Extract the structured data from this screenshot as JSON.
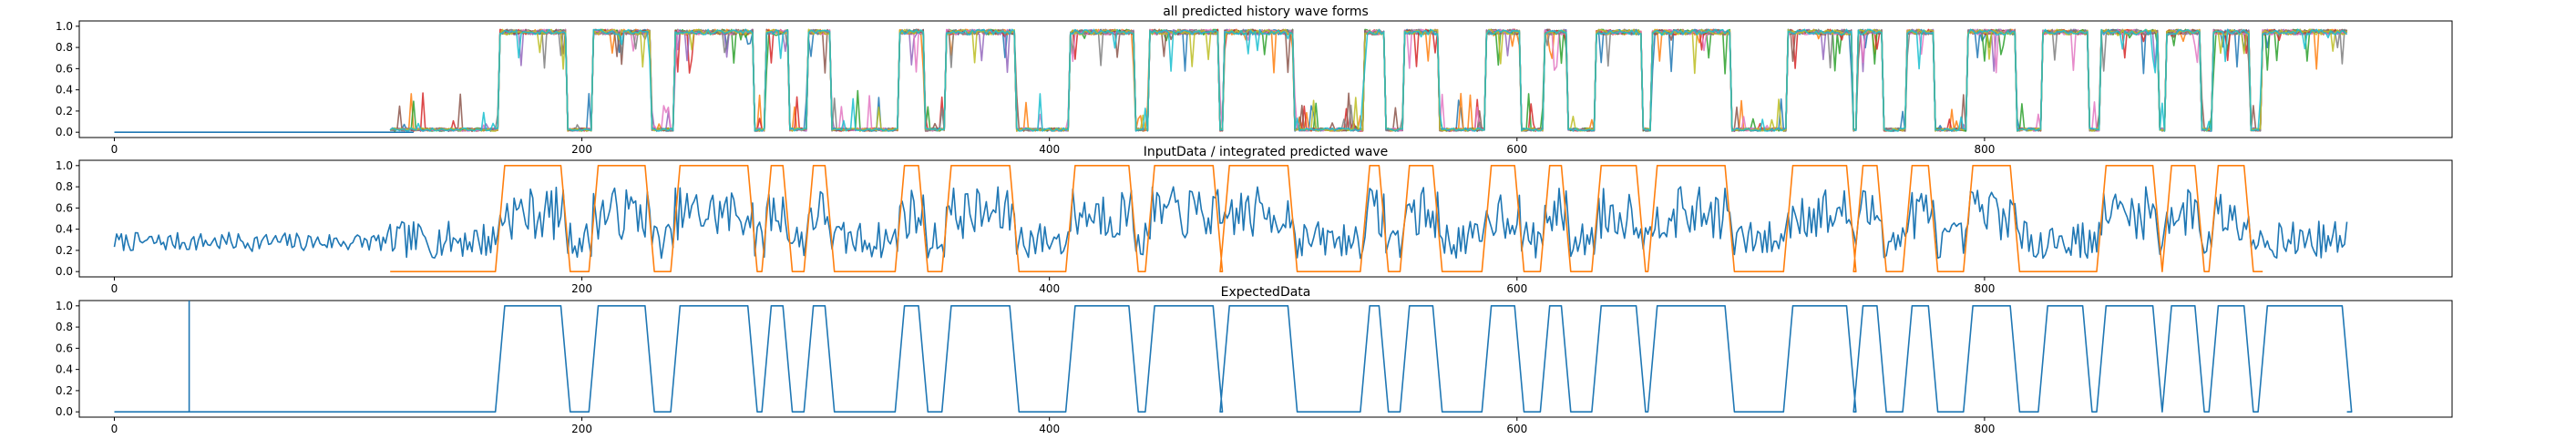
{
  "chart_data": [
    {
      "type": "line",
      "title": "all predicted history wave forms",
      "xlim": [
        -15,
        1000
      ],
      "ylim": [
        -0.05,
        1.05
      ],
      "xticks": [
        0,
        200,
        400,
        600,
        800
      ],
      "yticks": [
        0.0,
        0.2,
        0.4,
        0.6,
        0.8,
        1.0
      ],
      "series_colors": [
        "#1f77b4",
        "#ff7f0e",
        "#2ca02c",
        "#d62728",
        "#9467bd",
        "#8c564b",
        "#e377c2",
        "#7f7f7f",
        "#bcbd22",
        "#17becf"
      ],
      "flat_line": {
        "x": [
          0,
          128
        ],
        "y": [
          0,
          0
        ]
      },
      "predicted_x_range": [
        118,
        955
      ],
      "pulses": [
        [
          165,
          193
        ],
        [
          205,
          229
        ],
        [
          240,
          273
        ],
        [
          279,
          288
        ],
        [
          297,
          306
        ],
        [
          336,
          346
        ],
        [
          356,
          385
        ],
        [
          409,
          436
        ],
        [
          443,
          472
        ],
        [
          475,
          504
        ],
        [
          535,
          543
        ],
        [
          552,
          566
        ],
        [
          587,
          601
        ],
        [
          612,
          621
        ],
        [
          634,
          653
        ],
        [
          658,
          691
        ],
        [
          716,
          743
        ],
        [
          746,
          756
        ],
        [
          767,
          778
        ],
        [
          793,
          813
        ],
        [
          825,
          844
        ],
        [
          850,
          874
        ],
        [
          878,
          892
        ],
        [
          898,
          913
        ],
        [
          919,
          955
        ]
      ]
    },
    {
      "type": "line",
      "title": "InputData / integrated predicted wave",
      "xlim": [
        -15,
        1000
      ],
      "ylim": [
        -0.05,
        1.05
      ],
      "xticks": [
        0,
        200,
        400,
        600,
        800
      ],
      "yticks": [
        0.0,
        0.2,
        0.4,
        0.6,
        0.8,
        1.0
      ],
      "series": [
        {
          "color": "#1f77b4",
          "x_range": [
            0,
            955
          ],
          "points": 956
        },
        {
          "color": "#ff7f0e",
          "x_range": [
            118,
            919
          ],
          "pulses": [
            [
              165,
              193
            ],
            [
              205,
              229
            ],
            [
              240,
              273
            ],
            [
              279,
              288
            ],
            [
              297,
              306
            ],
            [
              336,
              346
            ],
            [
              356,
              385
            ],
            [
              409,
              436
            ],
            [
              443,
              472
            ],
            [
              475,
              504
            ],
            [
              535,
              543
            ],
            [
              552,
              566
            ],
            [
              587,
              601
            ],
            [
              612,
              621
            ],
            [
              634,
              653
            ],
            [
              658,
              691
            ],
            [
              716,
              743
            ],
            [
              746,
              756
            ],
            [
              767,
              778
            ],
            [
              793,
              813
            ],
            [
              850,
              874
            ],
            [
              878,
              892
            ],
            [
              898,
              913
            ]
          ]
        }
      ]
    },
    {
      "type": "line",
      "title": "ExpectedData",
      "xlim": [
        -15,
        1000
      ],
      "ylim": [
        -0.05,
        1.05
      ],
      "xticks": [
        0,
        200,
        400,
        600,
        800
      ],
      "yticks": [
        0.0,
        0.2,
        0.4,
        0.6,
        0.8,
        1.0
      ],
      "series": [
        {
          "color": "#1f77b4",
          "x_range": [
            0,
            955
          ],
          "spike_x": 32,
          "spike_y": 1.05,
          "pulses": [
            [
              165,
              193
            ],
            [
              205,
              229
            ],
            [
              240,
              273
            ],
            [
              279,
              288
            ],
            [
              297,
              306
            ],
            [
              336,
              346
            ],
            [
              356,
              385
            ],
            [
              409,
              436
            ],
            [
              443,
              472
            ],
            [
              475,
              504
            ],
            [
              535,
              543
            ],
            [
              552,
              566
            ],
            [
              587,
              601
            ],
            [
              612,
              621
            ],
            [
              634,
              653
            ],
            [
              658,
              691
            ],
            [
              716,
              743
            ],
            [
              746,
              756
            ],
            [
              767,
              778
            ],
            [
              793,
              813
            ],
            [
              825,
              844
            ],
            [
              850,
              874
            ],
            [
              878,
              892
            ],
            [
              898,
              913
            ],
            [
              919,
              955
            ]
          ]
        }
      ]
    }
  ]
}
